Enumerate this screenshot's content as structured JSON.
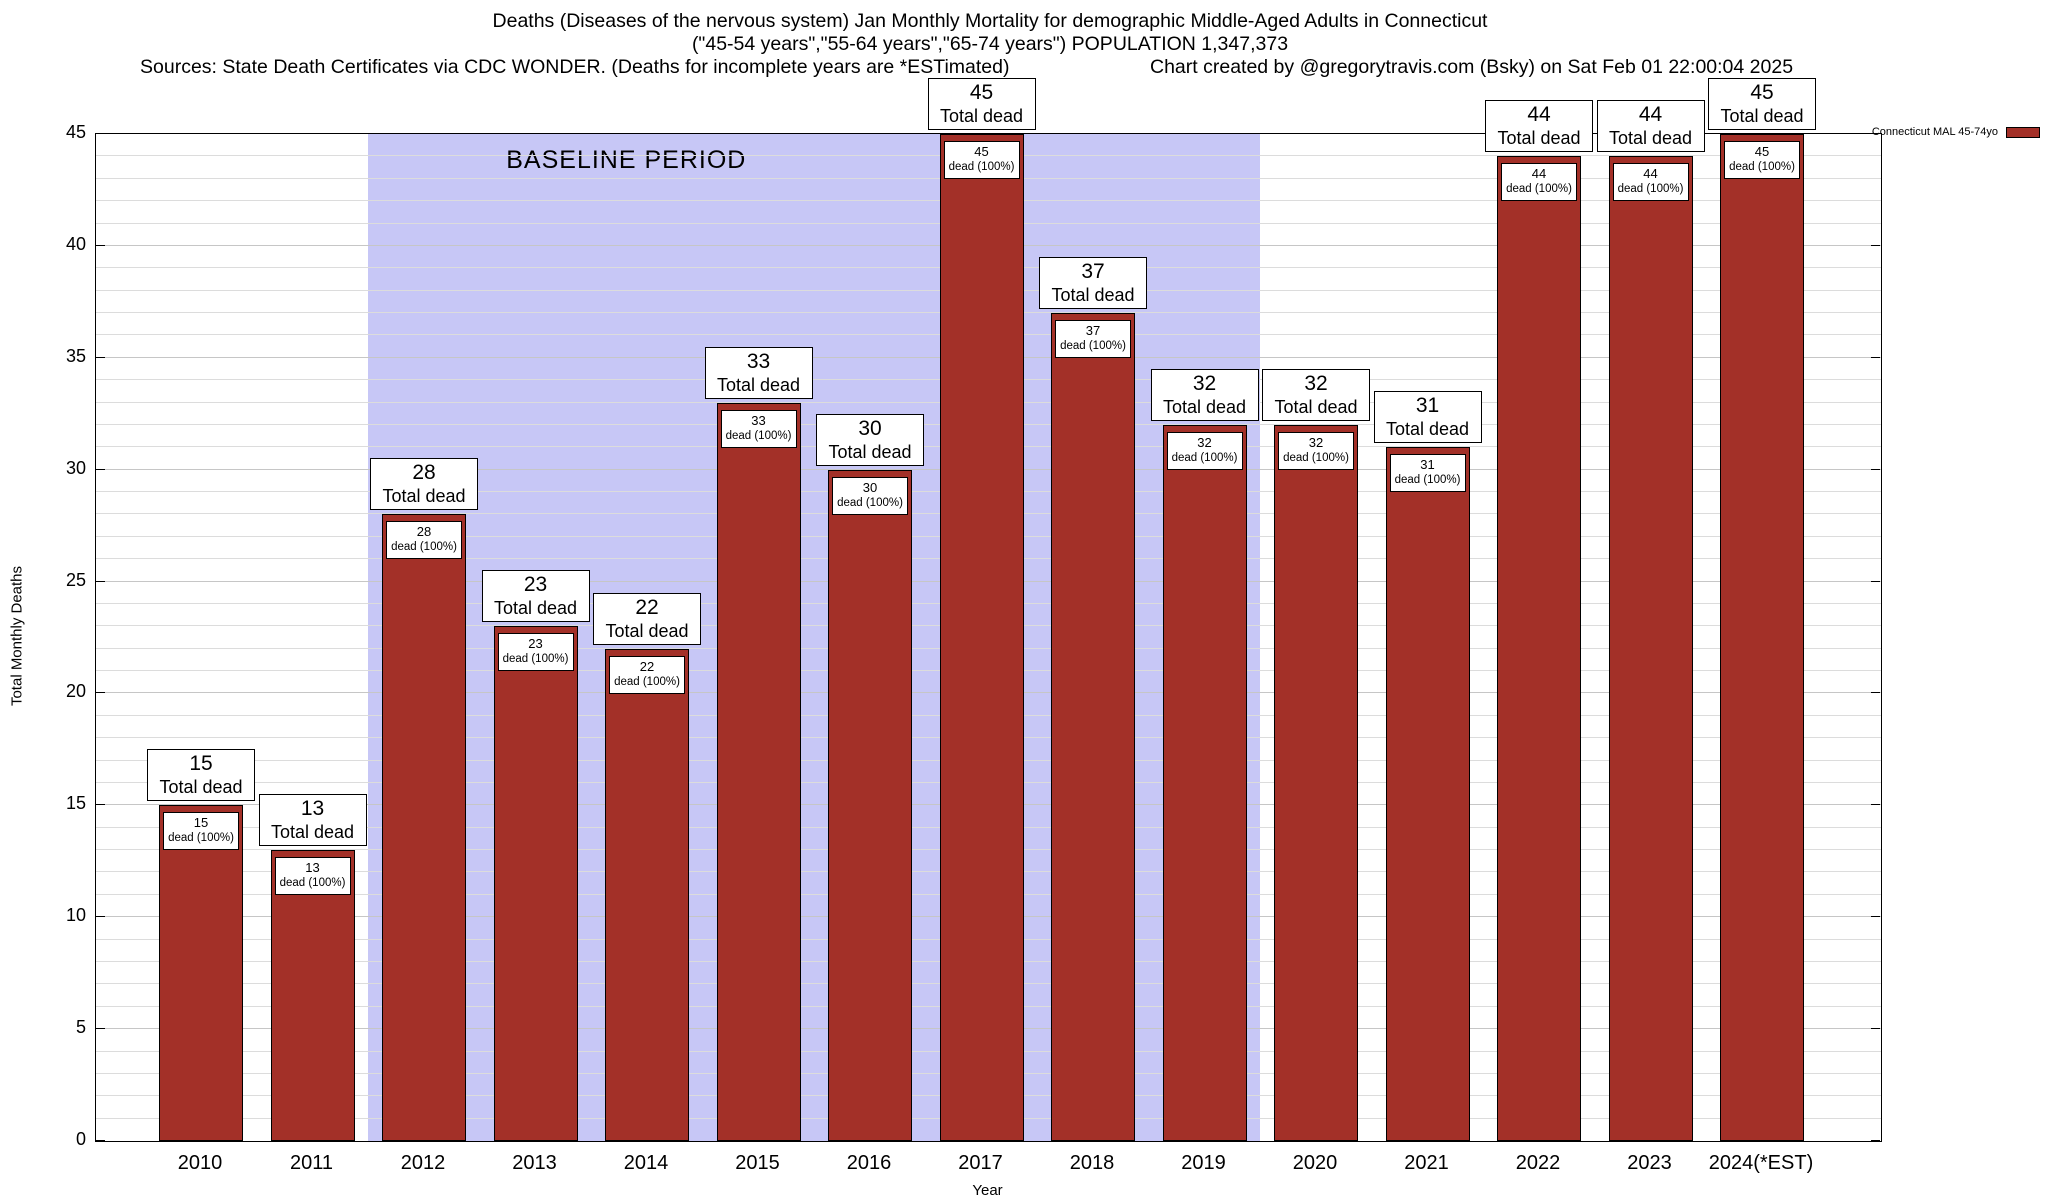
{
  "title": {
    "line1": "Deaths (Diseases of the nervous system) Jan Monthly Mortality for demographic Middle-Aged Adults in Connecticut",
    "line2": "(\"45-54 years\",\"55-64 years\",\"65-74 years\") POPULATION 1,347,373",
    "sources": "Sources: State Death Certificates via CDC WONDER. (Deaths for incomplete years are *ESTimated)",
    "credit": "Chart created by @gregorytravis.com (Bsky) on Sat Feb 01 22:00:04 2025"
  },
  "legend": {
    "label": "Connecticut MAL 45-74yo",
    "position": "top-right",
    "swatch_color": "#a33028"
  },
  "chart_data": {
    "type": "bar",
    "title": "Deaths (Diseases of the nervous system) Jan Monthly Mortality for demographic Middle-Aged Adults in Connecticut",
    "xlabel": "Year",
    "ylabel": "Total Monthly Deaths",
    "ylim": [
      0,
      45
    ],
    "yticks": [
      0,
      5,
      10,
      15,
      20,
      25,
      30,
      35,
      40,
      45
    ],
    "grid": true,
    "legend_position": "top-right",
    "bar_color": "#a33028",
    "categories": [
      "2010",
      "2011",
      "2012",
      "2013",
      "2014",
      "2015",
      "2016",
      "2017",
      "2018",
      "2019",
      "2020",
      "2021",
      "2022",
      "2023",
      "2024(*EST)"
    ],
    "values": [
      15,
      13,
      28,
      23,
      22,
      33,
      30,
      45,
      37,
      32,
      32,
      31,
      44,
      44,
      45
    ],
    "bar_top_label": "Total dead",
    "bar_inner_label": "dead (100%)",
    "baseline_region": {
      "label": "BASELINE PERIOD",
      "from_category": "2012",
      "to_category": "2019",
      "color": "#c7c7f6"
    }
  }
}
